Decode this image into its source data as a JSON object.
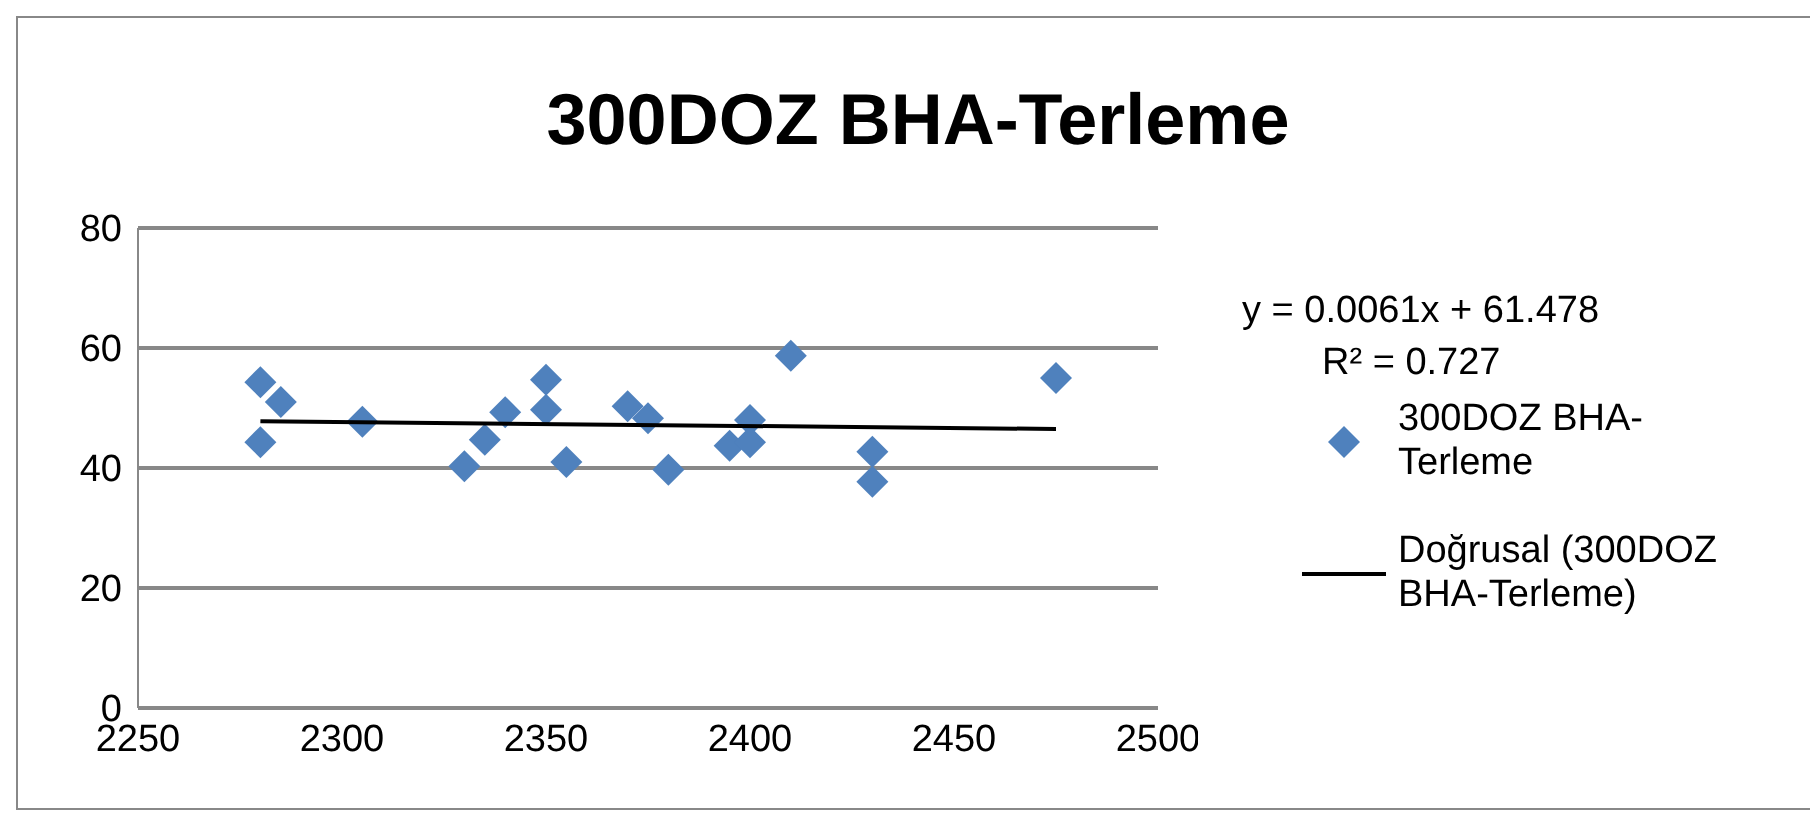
{
  "chart_data": {
    "type": "scatter",
    "title": "300DOZ BHA-Terleme",
    "series": [
      {
        "name": "300DOZ BHA-Terleme",
        "color": "#4f81bd",
        "marker": "diamond",
        "x": [
          2280,
          2285,
          2280,
          2305,
          2330,
          2335,
          2340,
          2350,
          2350,
          2355,
          2370,
          2375,
          2380,
          2395,
          2400,
          2400,
          2410,
          2430,
          2430,
          2475
        ],
        "values": [
          54.3,
          51,
          44.3,
          47.7,
          40.3,
          44.7,
          49.3,
          54.7,
          49.7,
          41,
          50.3,
          48.3,
          39.7,
          43.7,
          48,
          44.3,
          58.7,
          42.7,
          37.7,
          55
        ]
      },
      {
        "name": "Doğrusal (300DOZ BHA-Terleme)",
        "type": "line",
        "color": "#000000",
        "marker": "none",
        "x": [
          2280,
          2475
        ],
        "values": [
          47.8,
          46.5
        ]
      }
    ],
    "xlim": [
      2250,
      2500
    ],
    "xticks": [
      2250,
      2300,
      2350,
      2400,
      2450,
      2500
    ],
    "ylim": [
      0,
      80
    ],
    "yticks": [
      0,
      20,
      40,
      60,
      80
    ],
    "grid": "y",
    "legend": "right",
    "annotations": [
      "y = 0.0061x + 61.478",
      "R² = 0.727"
    ]
  }
}
